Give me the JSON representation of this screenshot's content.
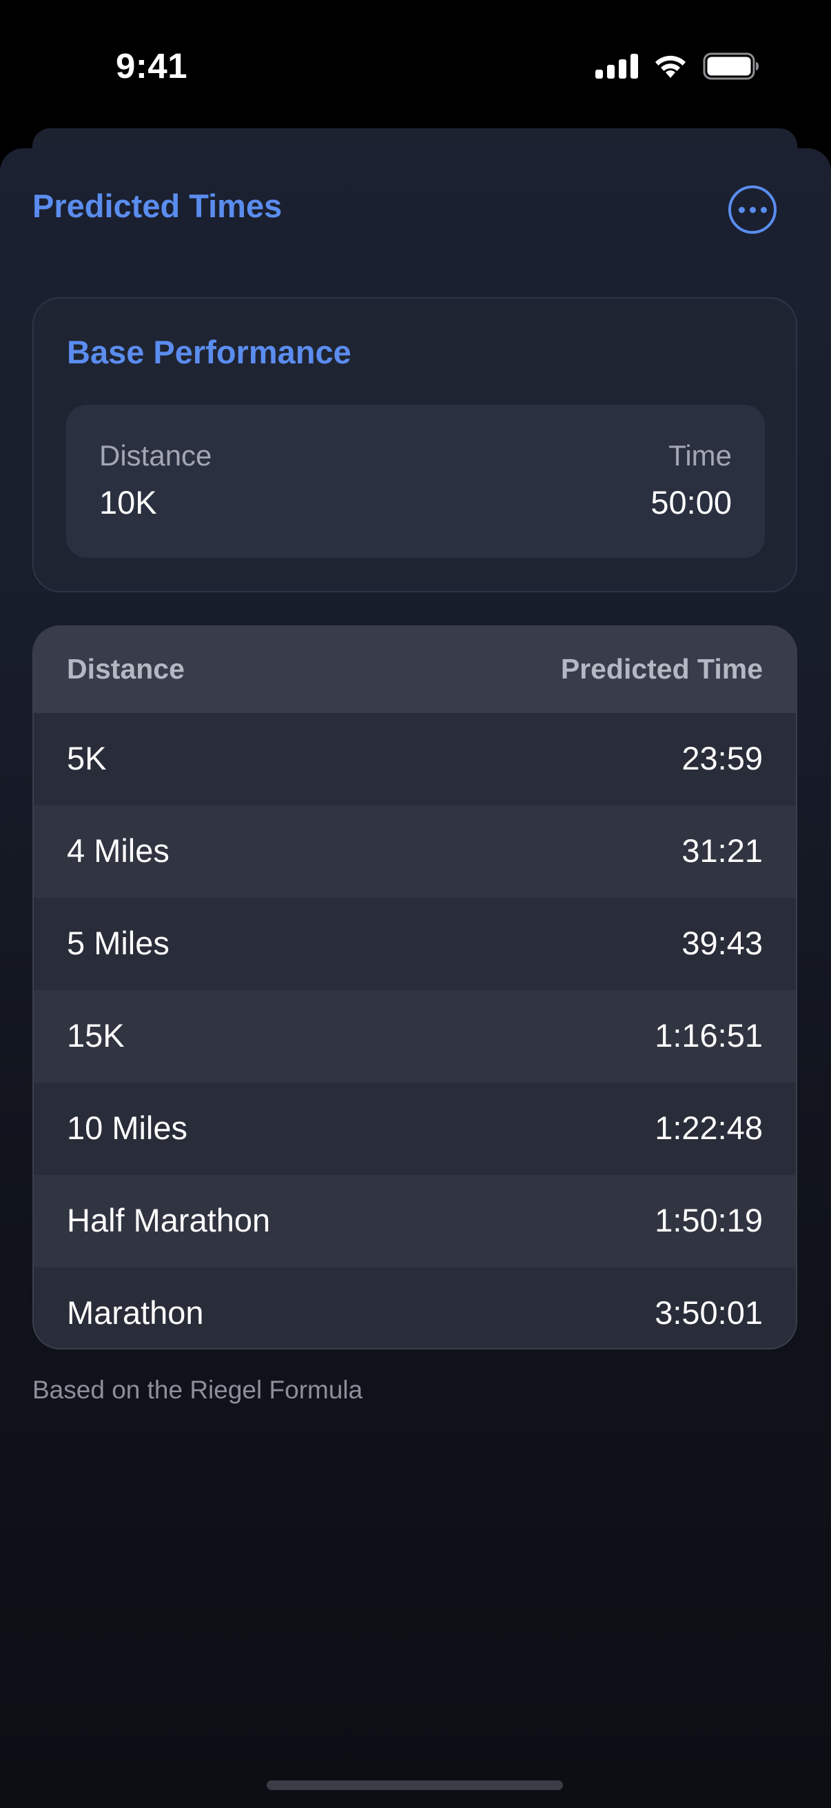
{
  "status_bar": {
    "time": "9:41"
  },
  "sheet": {
    "title": "Predicted Times",
    "more_icon": "ellipsis-circle-icon"
  },
  "base_performance": {
    "title": "Base Performance",
    "distance_label": "Distance",
    "distance_value": "10K",
    "time_label": "Time",
    "time_value": "50:00"
  },
  "predictions": {
    "headers": {
      "distance": "Distance",
      "predicted_time": "Predicted Time"
    },
    "rows": [
      {
        "distance": "5K",
        "time": "23:59"
      },
      {
        "distance": "4 Miles",
        "time": "31:21"
      },
      {
        "distance": "5 Miles",
        "time": "39:43"
      },
      {
        "distance": "15K",
        "time": "1:16:51"
      },
      {
        "distance": "10 Miles",
        "time": "1:22:48"
      },
      {
        "distance": "Half Marathon",
        "time": "1:50:19"
      },
      {
        "distance": "Marathon",
        "time": "3:50:01"
      }
    ]
  },
  "footnote": "Based on the Riegel Formula",
  "colors": {
    "accent": "#5b8def",
    "background": "#000000"
  }
}
